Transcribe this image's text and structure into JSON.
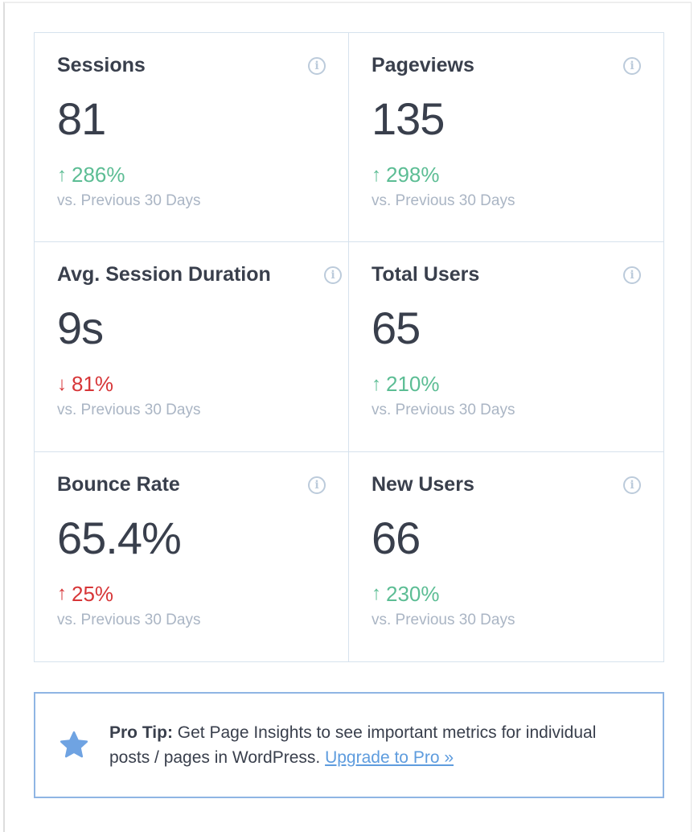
{
  "metrics": [
    {
      "title": "Sessions",
      "value": "81",
      "direction": "up",
      "change": "286%",
      "comparison": "vs. Previous 30 Days"
    },
    {
      "title": "Pageviews",
      "value": "135",
      "direction": "up",
      "change": "298%",
      "comparison": "vs. Previous 30 Days"
    },
    {
      "title": "Avg. Session Duration",
      "value": "9s",
      "direction": "down",
      "change": "81%",
      "comparison": "vs. Previous 30 Days"
    },
    {
      "title": "Total Users",
      "value": "65",
      "direction": "up",
      "change": "210%",
      "comparison": "vs. Previous 30 Days"
    },
    {
      "title": "Bounce Rate",
      "value": "65.4%",
      "direction": "up-bad",
      "change": "25%",
      "comparison": "vs. Previous 30 Days"
    },
    {
      "title": "New Users",
      "value": "66",
      "direction": "up",
      "change": "230%",
      "comparison": "vs. Previous 30 Days"
    }
  ],
  "tip": {
    "label": "Pro Tip:",
    "text": " Get Page Insights to see important metrics for individual posts / pages in WordPress. ",
    "link": "Upgrade to Pro »"
  },
  "colors": {
    "positive": "#5cbd94",
    "negative": "#d73638",
    "accent": "#6fa3e2"
  }
}
